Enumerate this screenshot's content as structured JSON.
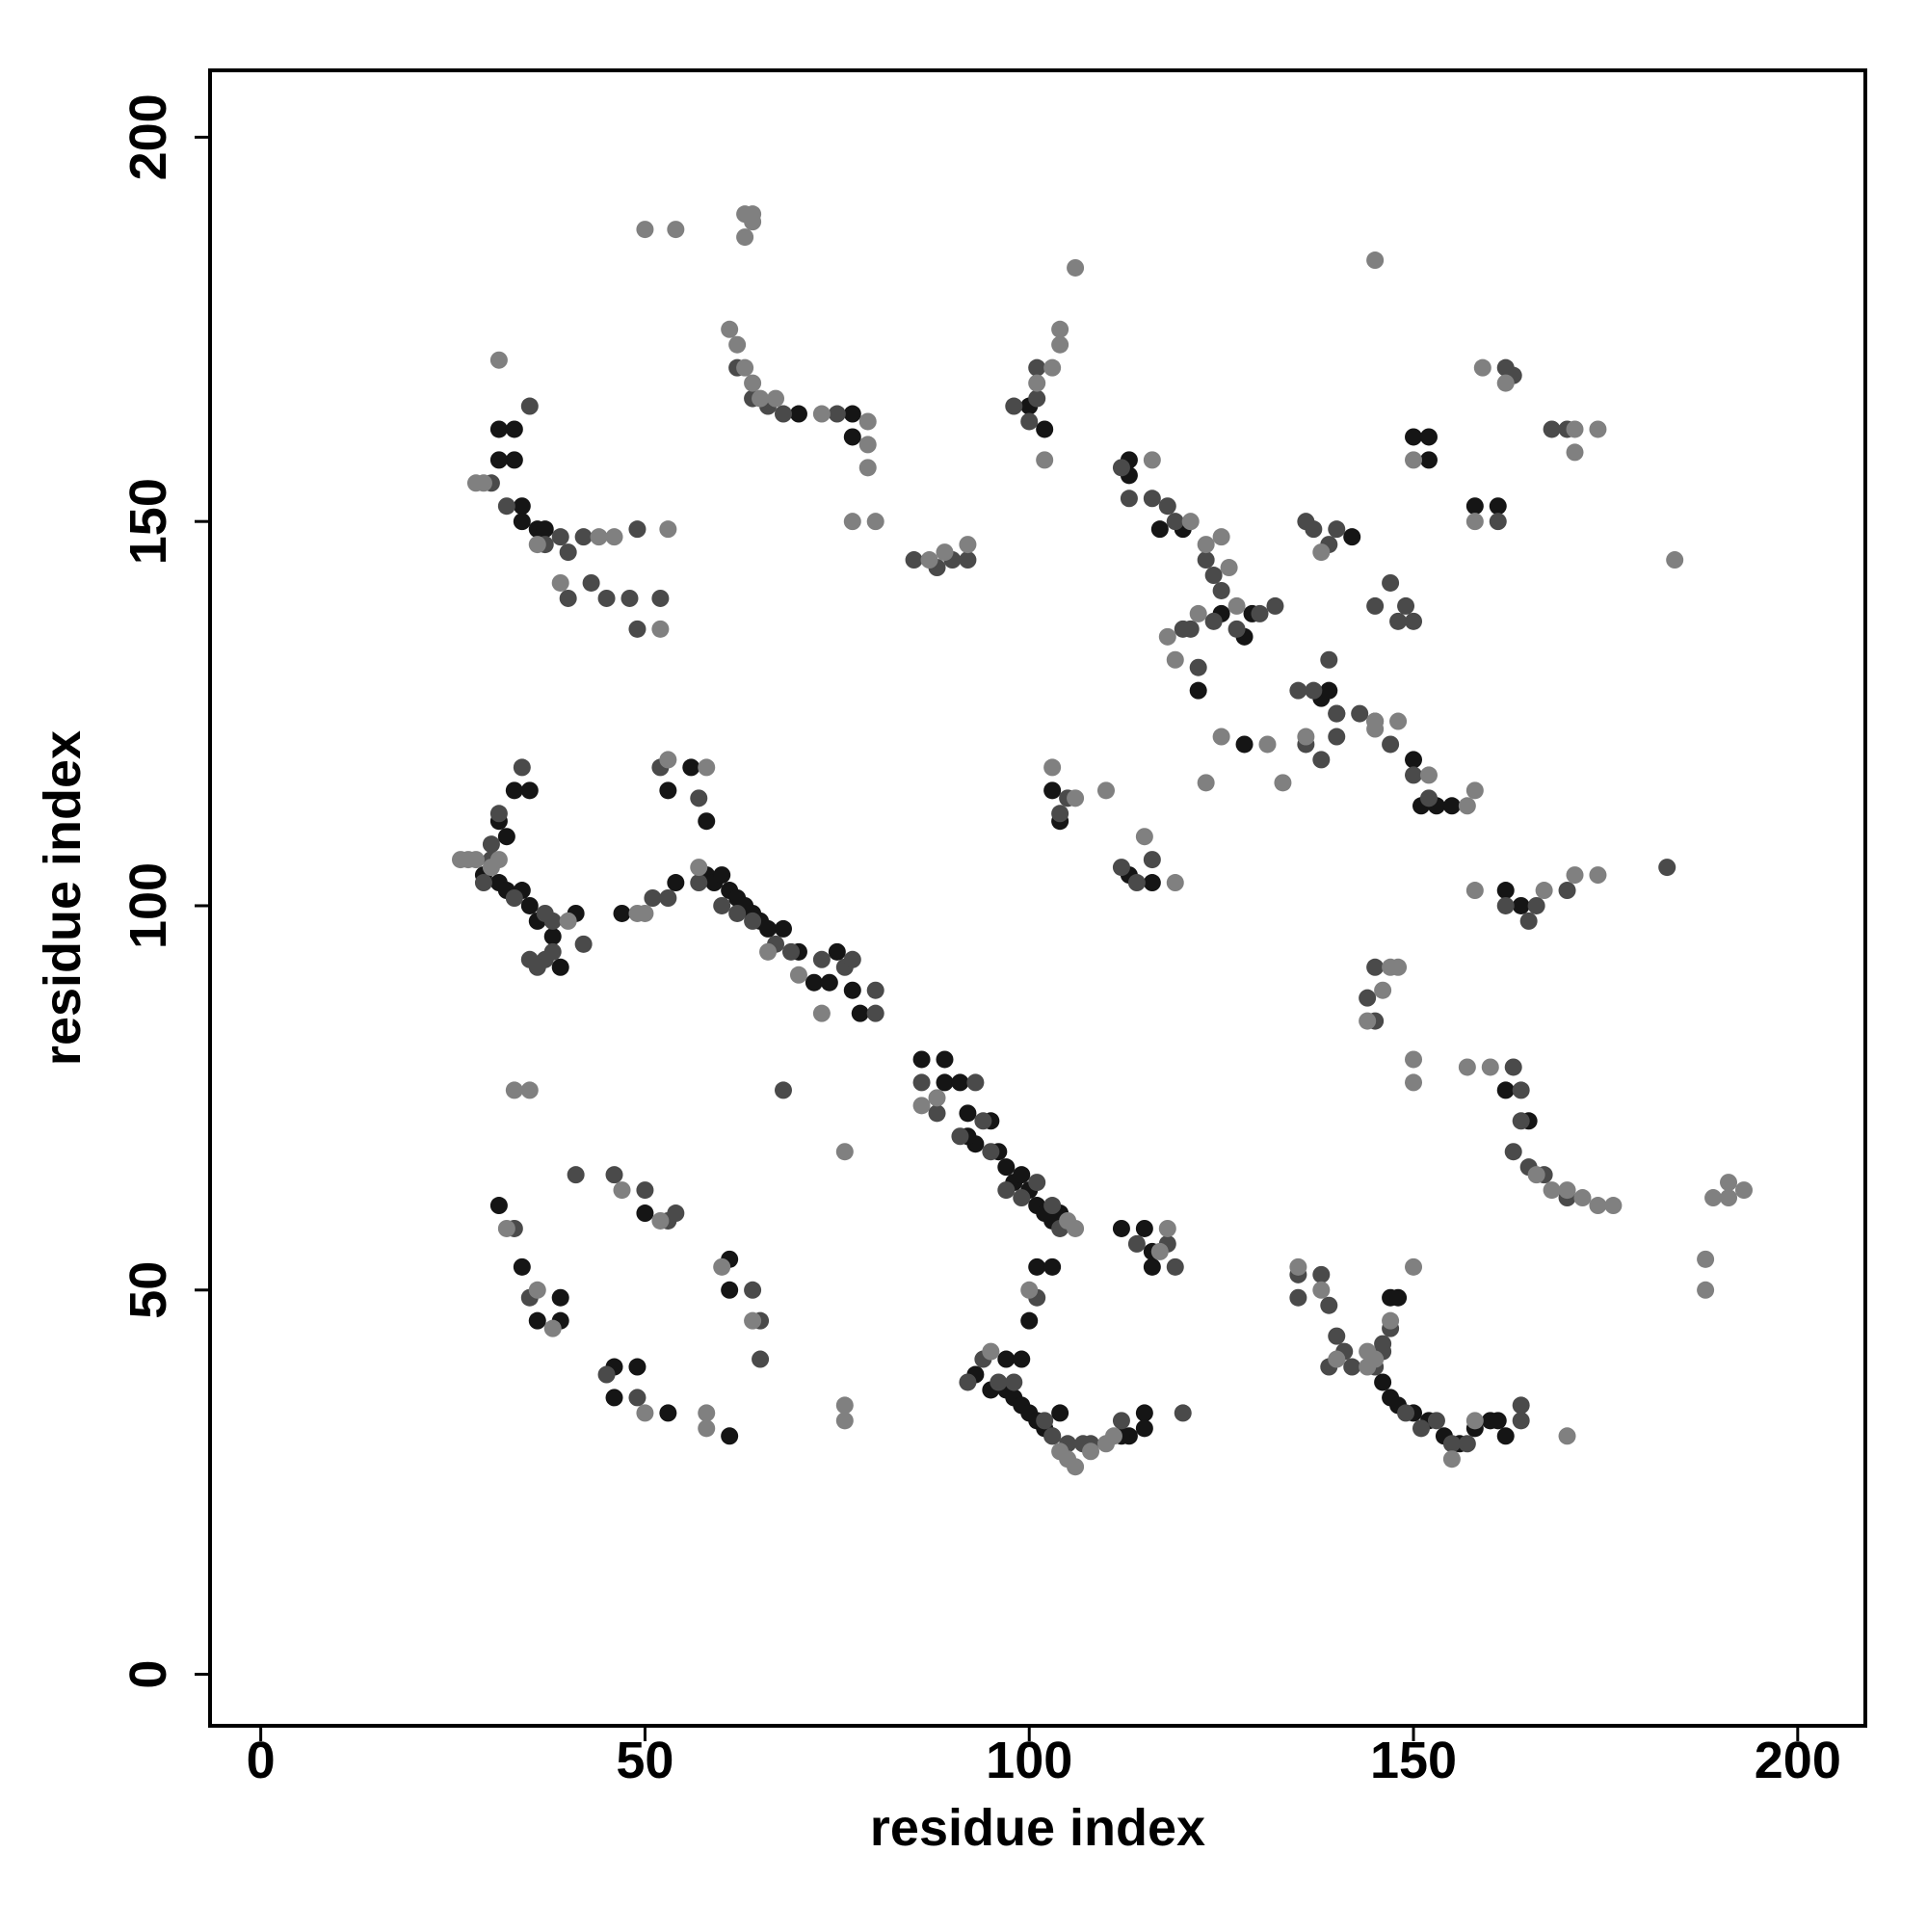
{
  "chart_data": {
    "type": "scatter",
    "xlabel": "residue index",
    "ylabel": "residue index",
    "xlim": [
      -6.6,
      208.8
    ],
    "ylim": [
      -6.7,
      208.7
    ],
    "xticks": [
      0,
      50,
      100,
      150,
      200
    ],
    "yticks": [
      0,
      50,
      100,
      150,
      200
    ],
    "series": [
      {
        "color": "#151515",
        "x": [
          31,
          33,
          33,
          31,
          34,
          34,
          36,
          37,
          70,
          77,
          77,
          100,
          102,
          113,
          113,
          117,
          120,
          125,
          129,
          128,
          122,
          142,
          128,
          138,
          139,
          140,
          150,
          151,
          153,
          155,
          150,
          152,
          152,
          158,
          161,
          31,
          32,
          33,
          35,
          29,
          31,
          32,
          34,
          35,
          36,
          41,
          38,
          39,
          47,
          54,
          58,
          59,
          60,
          61,
          62,
          63,
          64,
          65,
          66,
          68,
          70,
          72,
          74,
          77,
          75,
          56,
          53,
          58,
          78,
          86,
          89,
          89,
          91,
          92,
          93,
          96,
          97,
          98,
          99,
          100,
          101,
          102,
          103,
          104,
          92,
          95,
          103,
          104,
          113,
          116,
          162,
          164,
          162,
          165,
          31,
          34,
          36,
          39,
          39,
          46,
          49,
          46,
          50,
          53,
          61,
          61,
          61,
          93,
          95,
          97,
          98,
          99,
          100,
          101,
          102,
          103,
          104,
          97,
          99,
          100,
          101,
          103,
          112,
          115,
          116,
          116,
          115,
          115,
          113,
          112,
          147,
          148,
          146,
          147,
          148,
          150,
          152,
          154,
          156,
          158,
          160,
          161,
          162
        ],
        "values": [
          162,
          162,
          158,
          158,
          152,
          150,
          149,
          149,
          164,
          164,
          161,
          165,
          162,
          158,
          156,
          149,
          149,
          138,
          138,
          135,
          128,
          148,
          121,
          127,
          128,
          125,
          119,
          113,
          113,
          113,
          161,
          161,
          158,
          152,
          152,
          111,
          109,
          115,
          115,
          104,
          103,
          102,
          102,
          100,
          98,
          99,
          96,
          92,
          99,
          103,
          104,
          103,
          104,
          102,
          101,
          100,
          99,
          98,
          97,
          97,
          94,
          90,
          90,
          89,
          94,
          118,
          115,
          111,
          86,
          80,
          80,
          77,
          77,
          73,
          69,
          68,
          66,
          64,
          65,
          63,
          61,
          60,
          59,
          60,
          70,
          72,
          115,
          111,
          104,
          103,
          102,
          100,
          76,
          72,
          61,
          53,
          46,
          49,
          46,
          40,
          40,
          36,
          60,
          34,
          50,
          54,
          31,
          39,
          37,
          37,
          36,
          35,
          34,
          33,
          32,
          31,
          34,
          41,
          41,
          46,
          53,
          53,
          58,
          58,
          55,
          53,
          34,
          32,
          31,
          31,
          49,
          49,
          38,
          36,
          35,
          34,
          33,
          31,
          30,
          32,
          33,
          33,
          31
        ]
      },
      {
        "color": "#4a4a4a",
        "x": [
          35,
          30,
          32,
          37,
          39,
          40,
          42,
          40,
          43,
          45,
          48,
          49,
          49,
          52,
          62,
          64,
          66,
          68,
          75,
          85,
          88,
          92,
          90,
          98,
          101,
          101,
          100,
          112,
          113,
          116,
          118,
          119,
          121,
          120,
          122,
          123,
          124,
          125,
          124,
          127,
          130,
          132,
          136,
          137,
          139,
          140,
          135,
          137,
          139,
          136,
          138,
          140,
          143,
          145,
          147,
          150,
          152,
          147,
          148,
          149,
          145,
          150,
          140,
          161,
          162,
          163,
          168,
          170,
          34,
          31,
          30,
          29,
          33,
          37,
          38,
          37,
          36,
          38,
          42,
          35,
          51,
          53,
          30,
          57,
          60,
          62,
          64,
          67,
          69,
          73,
          76,
          77,
          80,
          80,
          68,
          57,
          52,
          86,
          88,
          91,
          93,
          94,
          95,
          97,
          99,
          101,
          103,
          104,
          104,
          105,
          112,
          116,
          114,
          145,
          144,
          145,
          163,
          164,
          164,
          163,
          165,
          167,
          170,
          183,
          162,
          166,
          165,
          170,
          35,
          33,
          41,
          46,
          50,
          53,
          54,
          64,
          65,
          65,
          45,
          49,
          92,
          94,
          96,
          98,
          101,
          102,
          103,
          105,
          107,
          108,
          112,
          114,
          118,
          119,
          120,
          135,
          135,
          138,
          139,
          140,
          141,
          142,
          145,
          146,
          146,
          147,
          149,
          151,
          153,
          155,
          157,
          164,
          164,
          139
        ],
        "values": [
          165,
          155,
          152,
          147,
          148,
          146,
          148,
          140,
          142,
          140,
          140,
          136,
          149,
          140,
          170,
          166,
          165,
          164,
          164,
          145,
          144,
          145,
          145,
          165,
          166,
          170,
          163,
          157,
          153,
          153,
          152,
          150,
          136,
          136,
          131,
          145,
          143,
          141,
          137,
          136,
          138,
          139,
          150,
          149,
          147,
          149,
          128,
          128,
          132,
          121,
          119,
          125,
          125,
          124,
          121,
          117,
          114,
          142,
          137,
          139,
          139,
          137,
          122,
          150,
          170,
          169,
          162,
          162,
          118,
          112,
          106,
          103,
          101,
          99,
          98,
          93,
          92,
          94,
          95,
          93,
          101,
          101,
          108,
          103,
          100,
          99,
          98,
          95,
          94,
          93,
          92,
          93,
          86,
          89,
          76,
          114,
          118,
          77,
          73,
          70,
          77,
          72,
          68,
          63,
          62,
          64,
          61,
          58,
          112,
          114,
          105,
          106,
          103,
          92,
          88,
          85,
          79,
          76,
          72,
          68,
          66,
          65,
          62,
          105,
          100,
          100,
          98,
          102,
          49,
          58,
          65,
          65,
          63,
          59,
          60,
          50,
          46,
          41,
          39,
          36,
          38,
          41,
          38,
          38,
          49,
          33,
          31,
          30,
          30,
          30,
          33,
          56,
          56,
          53,
          34,
          52,
          49,
          52,
          48,
          44,
          42,
          40,
          40,
          42,
          43,
          45,
          34,
          32,
          33,
          30,
          30,
          33,
          35,
          40
        ]
      },
      {
        "color": "#808080",
        "x": [
          28,
          29,
          31,
          39,
          44,
          46,
          52,
          53,
          36,
          63,
          64,
          63,
          64,
          50,
          54,
          61,
          62,
          63,
          64,
          65,
          67,
          73,
          79,
          79,
          79,
          77,
          80,
          106,
          87,
          89,
          92,
          104,
          104,
          103,
          102,
          101,
          116,
          121,
          123,
          125,
          126,
          122,
          119,
          118,
          127,
          138,
          136,
          133,
          131,
          145,
          148,
          152,
          158,
          157,
          125,
          123,
          145,
          150,
          158,
          159,
          162,
          174,
          171,
          171,
          184,
          145,
          26,
          27,
          28,
          30,
          31,
          40,
          49,
          50,
          33,
          35,
          57,
          66,
          70,
          73,
          76,
          58,
          53,
          86,
          88,
          105,
          106,
          103,
          106,
          110,
          115,
          119,
          147,
          148,
          146,
          144,
          150,
          150,
          157,
          160,
          166,
          168,
          170,
          172,
          174,
          176,
          189,
          191,
          193,
          191,
          188,
          188,
          158,
          167,
          171,
          174,
          32,
          36,
          38,
          47,
          50,
          52,
          58,
          58,
          60,
          64,
          76,
          76,
          95,
          100,
          104,
          106,
          105,
          108,
          110,
          111,
          117,
          118,
          135,
          138,
          140,
          144,
          144,
          145,
          147,
          150,
          155,
          158,
          170
        ],
        "values": [
          155,
          155,
          171,
          142,
          148,
          148,
          136,
          149,
          147,
          190,
          190,
          187,
          189,
          188,
          188,
          175,
          173,
          170,
          168,
          166,
          166,
          164,
          163,
          160,
          157,
          150,
          150,
          183,
          145,
          146,
          147,
          173,
          175,
          170,
          158,
          168,
          158,
          150,
          147,
          148,
          144,
          138,
          132,
          135,
          139,
          146,
          122,
          116,
          121,
          124,
          124,
          117,
          115,
          113,
          122,
          116,
          123,
          158,
          150,
          170,
          168,
          162,
          162,
          159,
          145,
          184,
          106,
          106,
          106,
          105,
          106,
          98,
          99,
          99,
          76,
          76,
          105,
          94,
          91,
          86,
          68,
          118,
          119,
          74,
          75,
          59,
          58,
          118,
          114,
          115,
          109,
          103,
          92,
          92,
          89,
          85,
          80,
          77,
          79,
          79,
          65,
          63,
          63,
          62,
          61,
          61,
          62,
          62,
          63,
          64,
          54,
          50,
          102,
          102,
          104,
          104,
          58,
          50,
          45,
          63,
          34,
          59,
          34,
          32,
          53,
          46,
          35,
          33,
          42,
          50,
          29,
          27,
          28,
          29,
          30,
          31,
          55,
          58,
          53,
          50,
          41,
          40,
          42,
          41,
          46,
          53,
          28,
          33,
          31
        ]
      }
    ]
  }
}
